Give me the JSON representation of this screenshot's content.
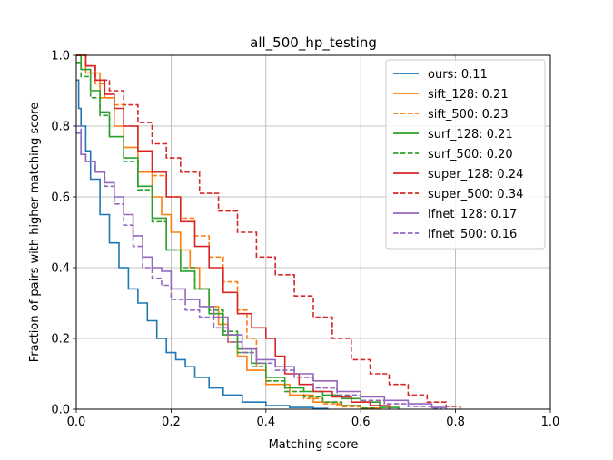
{
  "chart_data": {
    "type": "line",
    "title": "all_500_hp_testing",
    "xlabel": "Matching score",
    "ylabel": "Fraction of pairs with higher matching score",
    "xlim": [
      0.0,
      1.0
    ],
    "ylim": [
      0.0,
      1.0
    ],
    "xticks": [
      "0.0",
      "0.2",
      "0.4",
      "0.6",
      "0.8",
      "1.0"
    ],
    "yticks": [
      "0.0",
      "0.2",
      "0.4",
      "0.6",
      "0.8",
      "1.0"
    ],
    "grid": true,
    "legend_position": "top-right",
    "series": [
      {
        "name": "ours: 0.11",
        "color": "#1f77b4",
        "dash": "solid",
        "x": [
          0.0,
          0.005,
          0.01,
          0.02,
          0.03,
          0.05,
          0.07,
          0.09,
          0.11,
          0.13,
          0.15,
          0.17,
          0.19,
          0.21,
          0.23,
          0.25,
          0.28,
          0.31,
          0.35,
          0.4,
          0.45,
          0.5,
          0.53
        ],
        "y": [
          0.93,
          0.85,
          0.8,
          0.73,
          0.65,
          0.55,
          0.47,
          0.4,
          0.34,
          0.3,
          0.25,
          0.2,
          0.16,
          0.14,
          0.12,
          0.09,
          0.06,
          0.04,
          0.02,
          0.01,
          0.005,
          0.002,
          0.0
        ]
      },
      {
        "name": "sift_128: 0.21",
        "color": "#ff7f0e",
        "dash": "solid",
        "x": [
          0.0,
          0.02,
          0.05,
          0.08,
          0.1,
          0.13,
          0.16,
          0.18,
          0.2,
          0.22,
          0.24,
          0.26,
          0.28,
          0.3,
          0.32,
          0.34,
          0.36,
          0.4,
          0.45,
          0.5,
          0.55,
          0.6,
          0.64
        ],
        "y": [
          1.0,
          0.95,
          0.88,
          0.8,
          0.74,
          0.67,
          0.6,
          0.55,
          0.5,
          0.45,
          0.4,
          0.34,
          0.29,
          0.24,
          0.19,
          0.15,
          0.11,
          0.07,
          0.04,
          0.02,
          0.01,
          0.003,
          0.0
        ]
      },
      {
        "name": "sift_500: 0.23",
        "color": "#ff7f0e",
        "dash": "dashed",
        "x": [
          0.0,
          0.02,
          0.04,
          0.06,
          0.08,
          0.1,
          0.13,
          0.16,
          0.19,
          0.22,
          0.25,
          0.28,
          0.31,
          0.34,
          0.36,
          0.38,
          0.4,
          0.44,
          0.48,
          0.52,
          0.56,
          0.6,
          0.62
        ],
        "y": [
          1.0,
          0.97,
          0.92,
          0.88,
          0.86,
          0.8,
          0.73,
          0.66,
          0.6,
          0.54,
          0.49,
          0.43,
          0.36,
          0.28,
          0.2,
          0.12,
          0.08,
          0.05,
          0.03,
          0.015,
          0.007,
          0.002,
          0.0
        ]
      },
      {
        "name": "surf_128: 0.21",
        "color": "#2ca02c",
        "dash": "solid",
        "x": [
          0.0,
          0.01,
          0.03,
          0.05,
          0.07,
          0.1,
          0.13,
          0.16,
          0.19,
          0.22,
          0.25,
          0.28,
          0.31,
          0.34,
          0.37,
          0.4,
          0.44,
          0.48,
          0.52,
          0.56,
          0.6,
          0.64,
          0.68
        ],
        "y": [
          1.0,
          0.96,
          0.9,
          0.84,
          0.77,
          0.71,
          0.63,
          0.54,
          0.45,
          0.39,
          0.34,
          0.27,
          0.21,
          0.17,
          0.13,
          0.09,
          0.06,
          0.05,
          0.04,
          0.03,
          0.02,
          0.005,
          0.0
        ]
      },
      {
        "name": "surf_500: 0.20",
        "color": "#2ca02c",
        "dash": "dashed",
        "x": [
          0.0,
          0.01,
          0.03,
          0.05,
          0.07,
          0.1,
          0.13,
          0.16,
          0.19,
          0.22,
          0.25,
          0.28,
          0.31,
          0.34,
          0.37,
          0.4,
          0.44,
          0.48,
          0.52,
          0.56,
          0.6,
          0.63
        ],
        "y": [
          0.98,
          0.94,
          0.88,
          0.83,
          0.77,
          0.7,
          0.62,
          0.53,
          0.45,
          0.4,
          0.34,
          0.28,
          0.22,
          0.16,
          0.12,
          0.08,
          0.05,
          0.035,
          0.02,
          0.01,
          0.003,
          0.0
        ]
      },
      {
        "name": "super_128: 0.24",
        "color": "#d62728",
        "dash": "solid",
        "x": [
          0.0,
          0.02,
          0.04,
          0.06,
          0.08,
          0.1,
          0.13,
          0.16,
          0.19,
          0.22,
          0.25,
          0.28,
          0.31,
          0.34,
          0.37,
          0.4,
          0.42,
          0.44,
          0.47,
          0.5,
          0.54,
          0.58,
          0.62,
          0.66
        ],
        "y": [
          1.0,
          0.97,
          0.93,
          0.89,
          0.85,
          0.8,
          0.73,
          0.67,
          0.6,
          0.53,
          0.46,
          0.4,
          0.33,
          0.27,
          0.23,
          0.2,
          0.15,
          0.1,
          0.07,
          0.05,
          0.035,
          0.02,
          0.01,
          0.0
        ]
      },
      {
        "name": "super_500: 0.34",
        "color": "#d62728",
        "dash": "dashed",
        "x": [
          0.0,
          0.02,
          0.04,
          0.07,
          0.1,
          0.13,
          0.16,
          0.19,
          0.22,
          0.26,
          0.3,
          0.34,
          0.38,
          0.42,
          0.46,
          0.5,
          0.54,
          0.58,
          0.62,
          0.66,
          0.7,
          0.74,
          0.78,
          0.81
        ],
        "y": [
          1.0,
          0.97,
          0.93,
          0.9,
          0.86,
          0.81,
          0.75,
          0.71,
          0.67,
          0.61,
          0.56,
          0.5,
          0.43,
          0.38,
          0.32,
          0.26,
          0.2,
          0.14,
          0.1,
          0.07,
          0.04,
          0.02,
          0.008,
          0.0
        ]
      },
      {
        "name": "lfnet_128: 0.17",
        "color": "#9467bd",
        "dash": "solid",
        "x": [
          0.0,
          0.01,
          0.02,
          0.04,
          0.06,
          0.08,
          0.1,
          0.12,
          0.14,
          0.16,
          0.18,
          0.2,
          0.23,
          0.26,
          0.29,
          0.32,
          0.35,
          0.38,
          0.42,
          0.46,
          0.5,
          0.55,
          0.6,
          0.65,
          0.7,
          0.75,
          0.78
        ],
        "y": [
          0.78,
          0.72,
          0.7,
          0.67,
          0.64,
          0.6,
          0.55,
          0.49,
          0.43,
          0.4,
          0.39,
          0.34,
          0.31,
          0.29,
          0.26,
          0.21,
          0.17,
          0.14,
          0.12,
          0.1,
          0.08,
          0.05,
          0.035,
          0.025,
          0.015,
          0.005,
          0.0
        ]
      },
      {
        "name": "lfnet_500: 0.16",
        "color": "#9467bd",
        "dash": "dashed",
        "x": [
          0.0,
          0.01,
          0.02,
          0.04,
          0.06,
          0.08,
          0.1,
          0.12,
          0.14,
          0.16,
          0.18,
          0.2,
          0.23,
          0.26,
          0.29,
          0.32,
          0.35,
          0.38,
          0.42,
          0.46,
          0.5,
          0.55,
          0.6,
          0.65,
          0.7,
          0.75,
          0.77
        ],
        "y": [
          0.8,
          0.72,
          0.7,
          0.67,
          0.63,
          0.58,
          0.52,
          0.46,
          0.4,
          0.37,
          0.35,
          0.31,
          0.28,
          0.26,
          0.23,
          0.19,
          0.16,
          0.13,
          0.11,
          0.09,
          0.06,
          0.04,
          0.025,
          0.015,
          0.008,
          0.002,
          0.0
        ]
      }
    ]
  }
}
